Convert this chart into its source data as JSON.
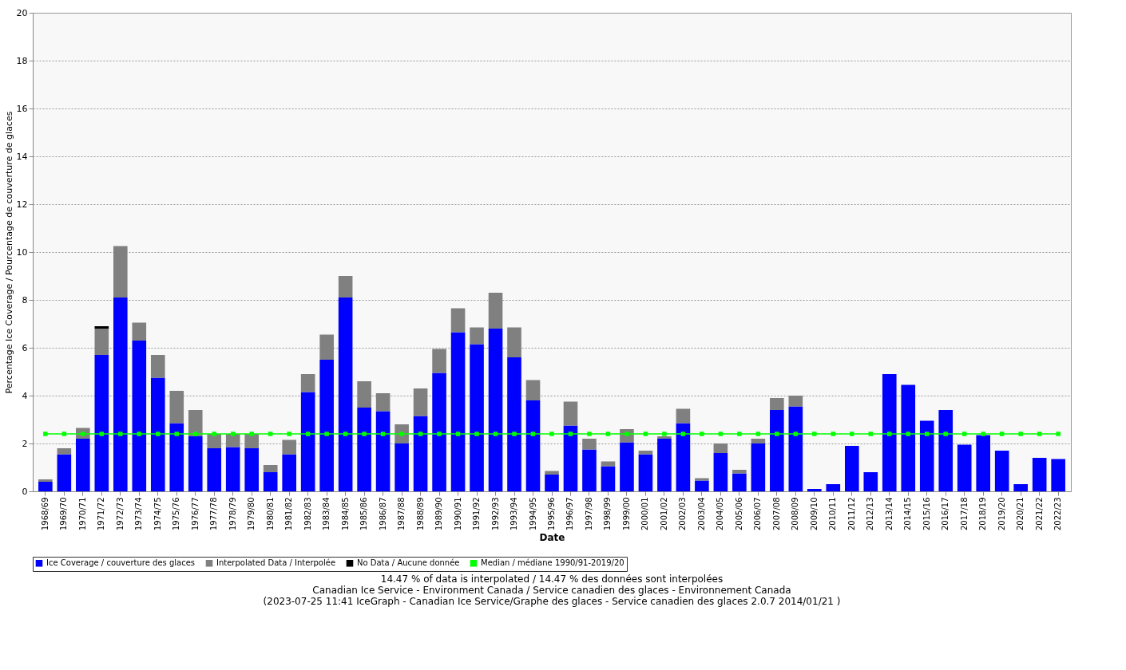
{
  "chart_data": {
    "type": "bar",
    "stacked": true,
    "xlabel": "Date",
    "ylabel": "Percentage Ice Coverage / Pourcentage de couverture de glaces",
    "categories": [
      "1968/69",
      "1969/70",
      "1970/71",
      "1971/72",
      "1972/73",
      "1973/74",
      "1974/75",
      "1975/76",
      "1976/77",
      "1977/78",
      "1978/79",
      "1979/80",
      "1980/81",
      "1981/82",
      "1982/83",
      "1983/84",
      "1984/85",
      "1985/86",
      "1986/87",
      "1987/88",
      "1988/89",
      "1989/90",
      "1990/91",
      "1991/92",
      "1992/93",
      "1993/94",
      "1994/95",
      "1995/96",
      "1996/97",
      "1997/98",
      "1998/99",
      "1999/00",
      "2000/01",
      "2001/02",
      "2002/03",
      "2003/04",
      "2004/05",
      "2005/06",
      "2006/07",
      "2007/08",
      "2008/09",
      "2009/10",
      "2010/11",
      "2011/12",
      "2012/13",
      "2013/14",
      "2014/15",
      "2015/16",
      "2016/17",
      "2017/18",
      "2018/19",
      "2019/20",
      "2020/21",
      "2021/22",
      "2022/23"
    ],
    "series": [
      {
        "name": "Ice Coverage / couverture des glaces",
        "color": "#0000ff",
        "values": [
          0.4,
          1.55,
          2.2,
          5.7,
          8.1,
          6.3,
          4.75,
          2.85,
          2.3,
          1.8,
          1.85,
          1.8,
          0.8,
          1.55,
          4.15,
          5.5,
          8.1,
          3.5,
          3.35,
          2.0,
          3.15,
          4.95,
          6.65,
          6.15,
          6.8,
          5.6,
          3.8,
          0.7,
          2.75,
          1.75,
          1.05,
          2.05,
          1.55,
          2.2,
          2.85,
          0.45,
          1.6,
          0.75,
          2.0,
          3.4,
          3.55,
          0.1,
          0.3,
          1.9,
          0.8,
          4.9,
          4.45,
          2.95,
          3.4,
          1.95,
          2.35,
          1.7,
          0.3,
          1.4,
          1.35
        ]
      },
      {
        "name": "Interpolated Data / Interpolée",
        "color": "#808080",
        "values": [
          0.1,
          0.25,
          0.45,
          1.1,
          2.15,
          0.75,
          0.95,
          1.35,
          1.1,
          0.6,
          0.55,
          0.6,
          0.3,
          0.6,
          0.75,
          1.05,
          0.9,
          1.1,
          0.75,
          0.8,
          1.15,
          1.0,
          1.0,
          0.7,
          1.5,
          1.25,
          0.85,
          0.15,
          1.0,
          0.45,
          0.2,
          0.55,
          0.15,
          0.1,
          0.6,
          0.1,
          0.4,
          0.15,
          0.2,
          0.5,
          0.45,
          null,
          null,
          null,
          null,
          null,
          null,
          null,
          null,
          null,
          null,
          null,
          null,
          null,
          null
        ]
      },
      {
        "name": "No Data / Aucune donnée",
        "color": "#000000",
        "values": [
          null,
          null,
          null,
          0.1,
          null,
          null,
          null,
          null,
          null,
          null,
          null,
          null,
          null,
          null,
          null,
          null,
          null,
          null,
          null,
          null,
          null,
          null,
          null,
          null,
          null,
          null,
          null,
          null,
          null,
          null,
          null,
          null,
          null,
          null,
          null,
          null,
          null,
          null,
          null,
          null,
          null,
          null,
          null,
          null,
          null,
          null,
          null,
          null,
          null,
          null,
          null,
          null,
          null,
          null,
          null
        ]
      },
      {
        "name": "Median / médiane 1990/91-2019/20",
        "type": "line",
        "marker": "square",
        "color": "#00ff00",
        "values": [
          2.4,
          2.4,
          2.4,
          2.4,
          2.4,
          2.4,
          2.4,
          2.4,
          2.4,
          2.4,
          2.4,
          2.4,
          2.4,
          2.4,
          2.4,
          2.4,
          2.4,
          2.4,
          2.4,
          2.4,
          2.4,
          2.4,
          2.4,
          2.4,
          2.4,
          2.4,
          2.4,
          2.4,
          2.4,
          2.4,
          2.4,
          2.4,
          2.4,
          2.4,
          2.4,
          2.4,
          2.4,
          2.4,
          2.4,
          2.4,
          2.4,
          2.4,
          2.4,
          2.4,
          2.4,
          2.4,
          2.4,
          2.4,
          2.4,
          2.4,
          2.4,
          2.4,
          2.4,
          2.4,
          2.4
        ]
      }
    ],
    "ylim": [
      0,
      20
    ],
    "yticks": [
      0,
      2,
      4,
      6,
      8,
      10,
      12,
      14,
      16,
      18,
      20
    ],
    "grid": "y",
    "legend": "bottom",
    "annotations": [
      "14.47 % of data is interpolated / 14.47 % des données sont interpolées",
      "Canadian Ice Service - Environment Canada / Service canadien des glaces - Environnement Canada",
      "(2023-07-25 11:41 IceGraph - Canadian Ice Service/Graphe des glaces - Service canadien des glaces 2.0.7 2014/01/21 )"
    ]
  }
}
